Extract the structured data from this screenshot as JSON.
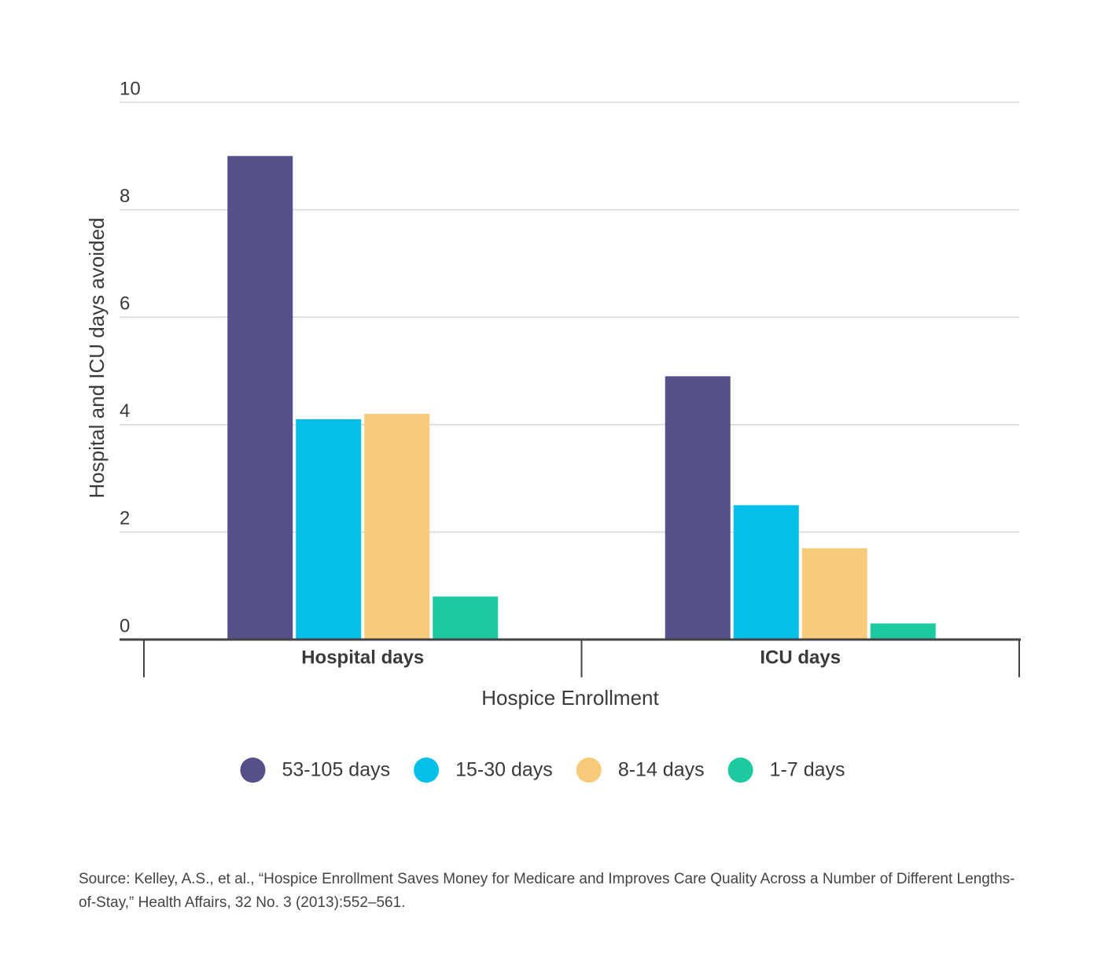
{
  "chart_data": {
    "type": "bar",
    "y_label": "Hospital and ICU days avoided",
    "x_label": "Hospice Enrollment",
    "categories": [
      "Hospital days",
      "ICU days"
    ],
    "series": [
      {
        "name": "53-105 days",
        "color": "#56508a",
        "values": [
          9.0,
          4.9
        ]
      },
      {
        "name": "15-30 days",
        "color": "#04c0e8",
        "values": [
          4.1,
          2.5
        ]
      },
      {
        "name": "8-14 days",
        "color": "#f8cb7a",
        "values": [
          4.2,
          1.7
        ]
      },
      {
        "name": "1-7 days",
        "color": "#1ecba0",
        "values": [
          0.8,
          0.3
        ]
      }
    ],
    "ylim": [
      0,
      10
    ],
    "yticks": [
      0,
      2,
      4,
      6,
      8,
      10
    ],
    "grid": true,
    "source": "Source: Kelley, A.S., et al., “Hospice Enrollment Saves Money for Medicare and Improves Care Quality Across a Number of Different Lengths-of-Stay,”  Health Affairs, 32 No. 3 (2013):552–561."
  }
}
